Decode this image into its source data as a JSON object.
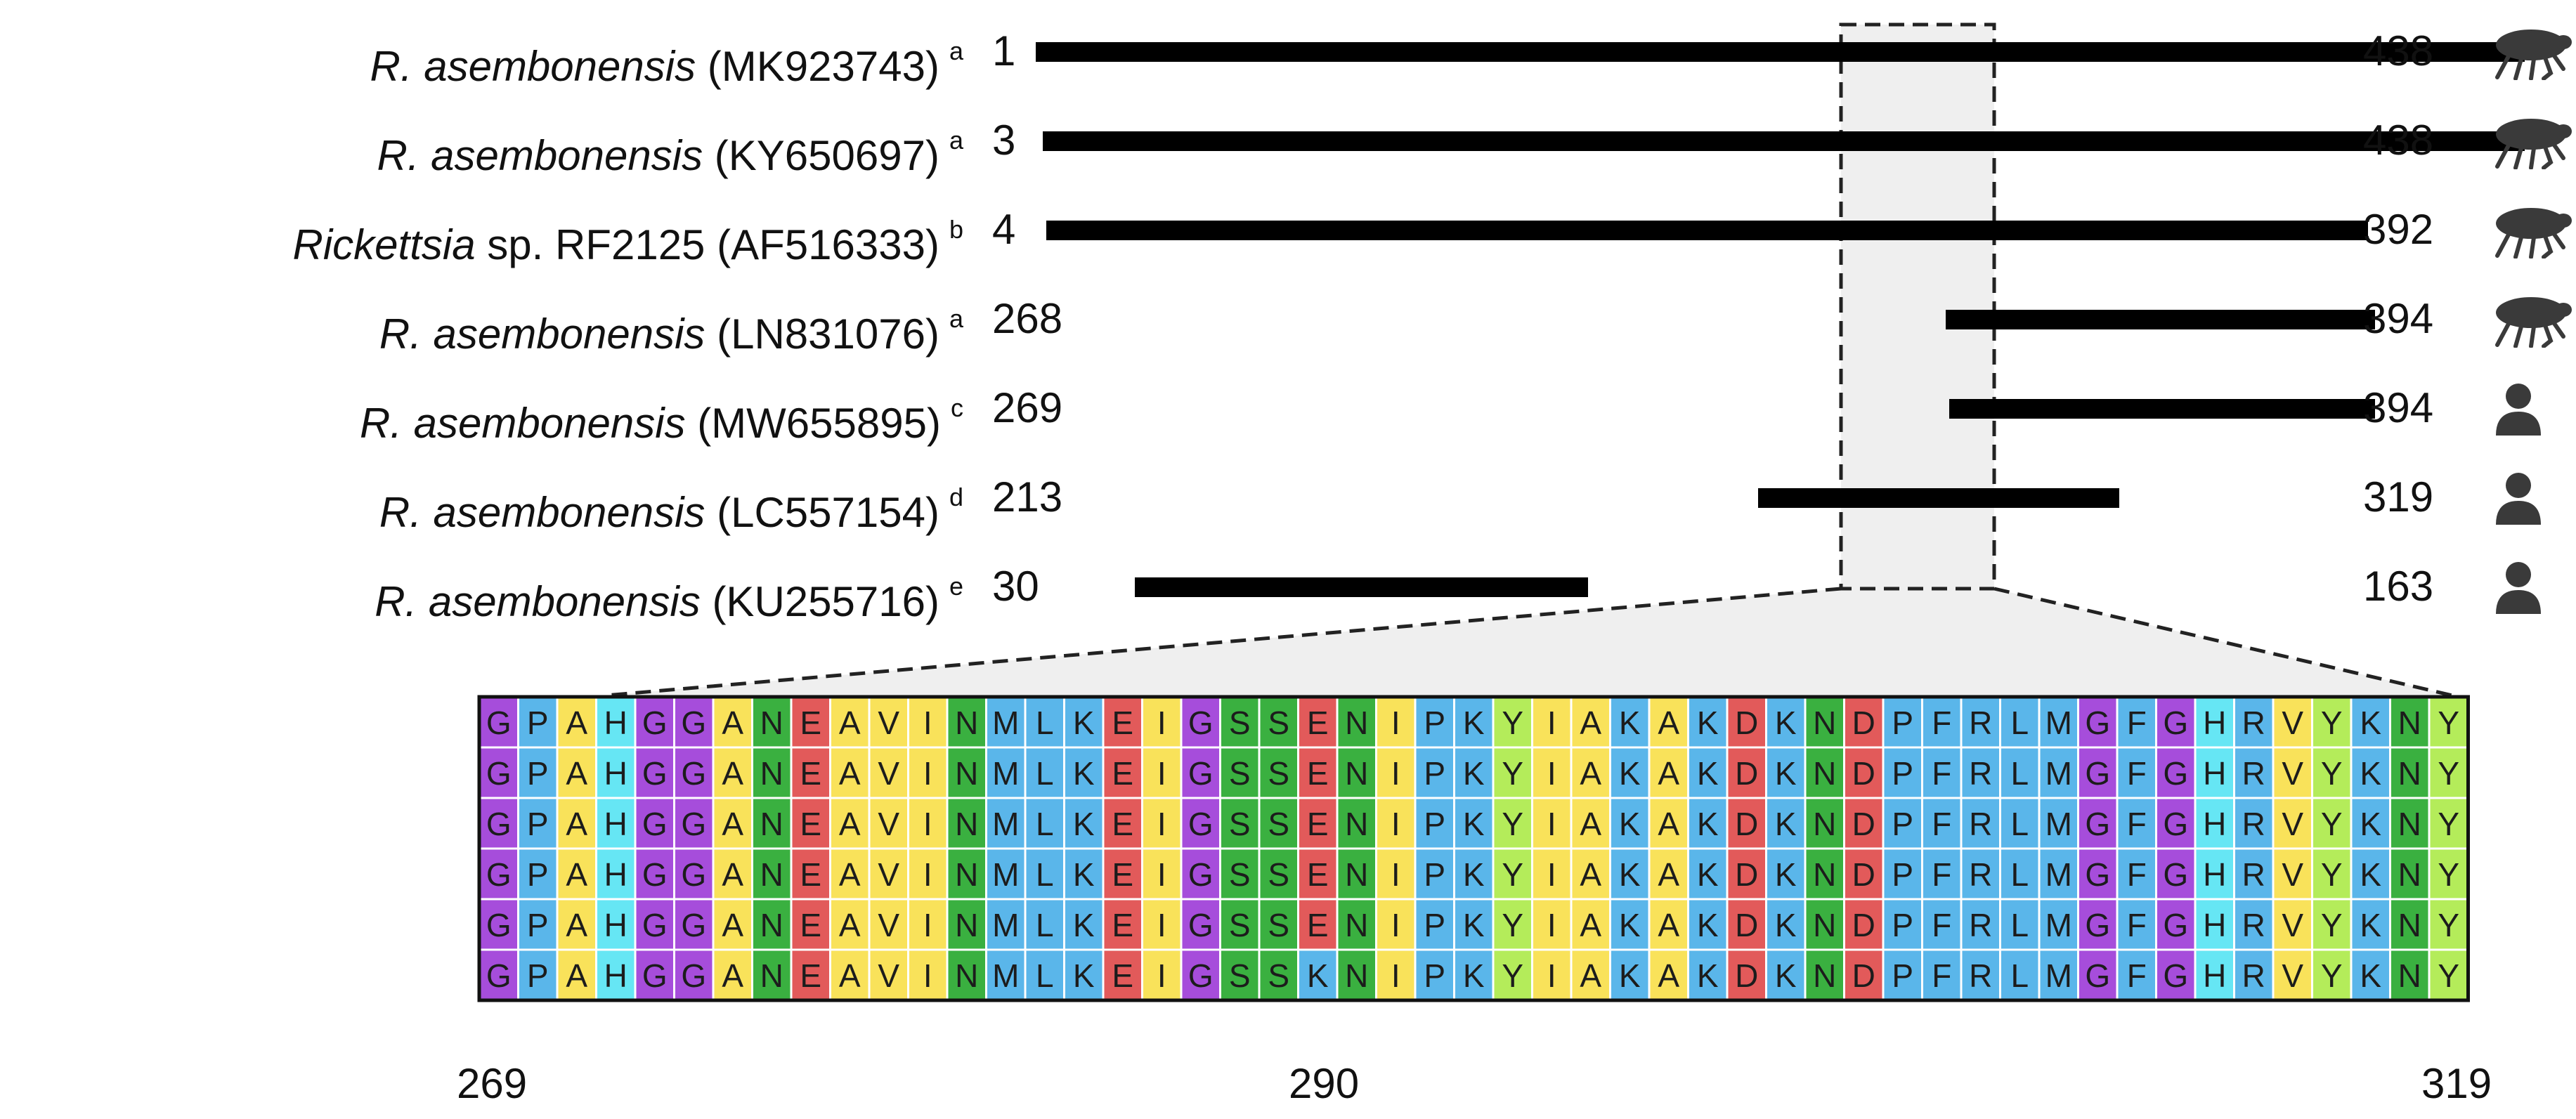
{
  "sequences": [
    {
      "genus": "R. asembonensis",
      "suffix": "",
      "accession": "(MK923743)",
      "ref": "a",
      "start": 1,
      "end": 438,
      "host": "flea"
    },
    {
      "genus": "R. asembonensis",
      "suffix": "",
      "accession": "(KY650697)",
      "ref": "a",
      "start": 3,
      "end": 438,
      "host": "flea"
    },
    {
      "genus": "Rickettsia",
      "suffix": " sp. RF2125",
      "accession": "(AF516333)",
      "ref": "b",
      "start": 4,
      "end": 392,
      "host": "flea"
    },
    {
      "genus": "R. asembonensis",
      "suffix": "",
      "accession": "(LN831076)",
      "ref": "a",
      "start": 268,
      "end": 394,
      "host": "flea"
    },
    {
      "genus": "R. asembonensis",
      "suffix": "",
      "accession": "(MW655895)",
      "ref": "c",
      "start": 269,
      "end": 394,
      "host": "human"
    },
    {
      "genus": "R. asembonensis",
      "suffix": "",
      "accession": "(LC557154)",
      "ref": "d",
      "start": 213,
      "end": 319,
      "host": "human"
    },
    {
      "genus": "R. asembonensis",
      "suffix": "",
      "accession": "(KU255716)",
      "ref": "e",
      "start": 30,
      "end": 163,
      "host": "human"
    }
  ],
  "highlight_range": [
    269,
    319
  ],
  "alignment": {
    "rows": [
      "GPAHGGANEAVINMLKEIGSSENIPKYIAKAKDKNDPFRLMGFGHRVYKNY",
      "GPAHGGANEAVINMLKEIGSSENIPKYIAKAKDKNDPFRLMGFGHRVYKNY",
      "GPAHGGANEAVINMLKEIGSSENIPKYIAKAKDKNDPFRLMGFGHRVYKNY",
      "GPAHGGANEAVINMLKEIGSSENIPKYIAKAKDKNDPFRLMGFGHRVYKNY",
      "GPAHGGANEAVINMLKEIGSSENIPKYIAKAKDKNDPFRLMGFGHRVYKNY",
      "GPAHGGANEAVINMLKEIGSSKNIPKYIAKAKDKNDPFRLMGFGHRVYKNY"
    ],
    "axis_labels": {
      "start": "269",
      "mid": "290",
      "end": "319"
    }
  },
  "residue_colors": {
    "G": "#a64ddb",
    "P": "#5ab6ea",
    "A": "#f9e25a",
    "H": "#66e6f4",
    "N": "#3ab040",
    "E": "#e25a5a",
    "V": "#f9e25a",
    "I": "#f9e25a",
    "M": "#5ab6ea",
    "L": "#5ab6ea",
    "K": "#5ab6ea",
    "S": "#3ab040",
    "Y": "#b4ec5a",
    "D": "#e25a5a",
    "F": "#5ab6ea",
    "R": "#5ab6ea"
  },
  "icons": {
    "flea": "flea-icon",
    "human": "person-icon"
  }
}
